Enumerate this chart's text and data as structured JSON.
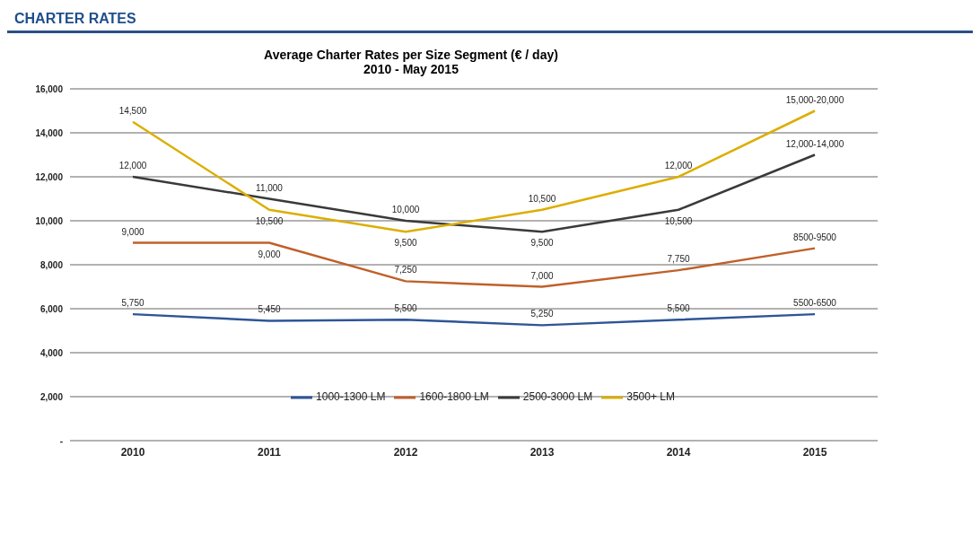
{
  "chart_data": {
    "type": "line",
    "title": "Average Charter Rates per Size Segment (€ / day)",
    "subtitle": "2010 -  May 2015",
    "annotations": [
      "CHARTER RATES"
    ],
    "categories": [
      "2010",
      "2011",
      "2012",
      "2013",
      "2014",
      "2015"
    ],
    "series": [
      {
        "name": "1000-1300 LM",
        "color": "#2e5597",
        "values": [
          5750,
          5450,
          5500,
          5250,
          5500,
          5750
        ],
        "value_labels": [
          "5,750",
          "5,450",
          "5,500",
          "5,250",
          "5,500",
          "5500-6500"
        ]
      },
      {
        "name": "1600-1800 LM",
        "color": "#c0602a",
        "values": [
          9000,
          9000,
          7250,
          7000,
          7750,
          8750
        ],
        "value_labels": [
          "9,000",
          "9,000",
          "7,250",
          "7,000",
          "7,750",
          "8500-9500"
        ]
      },
      {
        "name": "2500-3000 LM",
        "color": "#3a3a3a",
        "values": [
          12000,
          11000,
          10000,
          9500,
          10500,
          13000
        ],
        "value_labels": [
          "12,000",
          "11,000",
          "10,000",
          "9,500",
          "10,500",
          "12,000-14,000"
        ]
      },
      {
        "name": "3500+ LM",
        "color": "#dcae00",
        "values": [
          14500,
          10500,
          9500,
          10500,
          12000,
          15000
        ],
        "value_labels": [
          "14,500",
          "10,500",
          "9,500",
          "10,500",
          "12,000",
          "15,000-20,000"
        ]
      }
    ],
    "ylim": [
      0,
      16000
    ],
    "yticks": [
      {
        "value": 0,
        "label": "-"
      },
      {
        "value": 2000,
        "label": "2,000"
      },
      {
        "value": 4000,
        "label": "4,000"
      },
      {
        "value": 6000,
        "label": "6,000"
      },
      {
        "value": 8000,
        "label": "8,000"
      },
      {
        "value": 10000,
        "label": "10,000"
      },
      {
        "value": 12000,
        "label": "12,000"
      },
      {
        "value": 14000,
        "label": "14,000"
      },
      {
        "value": 16000,
        "label": "16,000"
      }
    ],
    "grid": "y",
    "legend": "bottom",
    "marker": "none",
    "line_style": "solid"
  }
}
